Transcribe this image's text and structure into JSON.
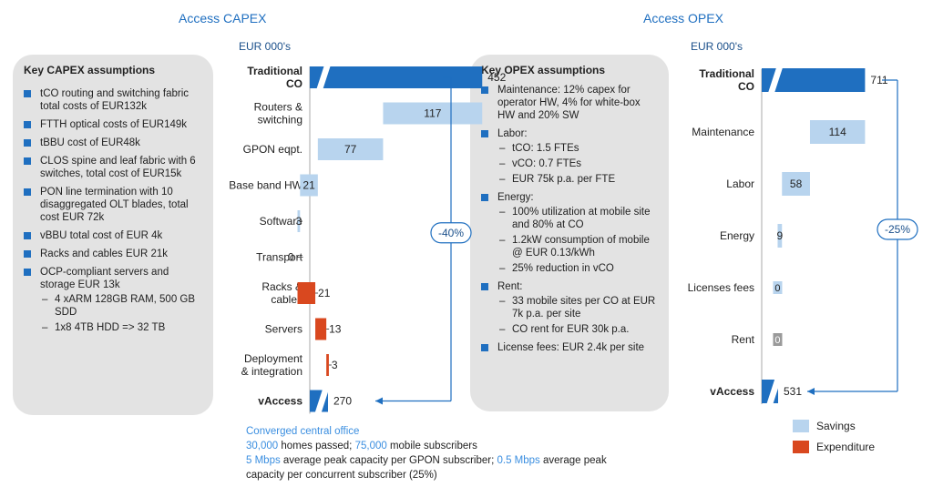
{
  "capex": {
    "title": "Access CAPEX",
    "units": "EUR 000's",
    "panel_title": "Key CAPEX assumptions",
    "assumptions": [
      {
        "text": "tCO routing and switching fabric total costs of EUR132k"
      },
      {
        "text": "FTTH optical costs of EUR149k"
      },
      {
        "text": "tBBU cost of EUR48k"
      },
      {
        "text": "CLOS spine and leaf fabric with 6 switches, total cost of EUR15k"
      },
      {
        "text": "PON line termination with 10 disaggregated OLT blades, total cost EUR 72k"
      },
      {
        "text": "vBBU total cost of EUR 4k"
      },
      {
        "text": "Racks and cables EUR 21k"
      },
      {
        "text": "OCP-compliant servers and storage EUR 13k",
        "sub": [
          "4 xARM 128GB RAM, 500 GB SDD",
          "1x8 4TB HDD => 32 TB"
        ]
      }
    ]
  },
  "opex": {
    "title": "Access OPEX",
    "units": "EUR 000's",
    "panel_title": "Key OPEX assumptions",
    "assumptions": [
      {
        "text": "Maintenance: 12% capex for operator HW, 4% for white-box HW and 20% SW"
      },
      {
        "text": "Labor:",
        "sub": [
          "tCO: 1.5 FTEs",
          "vCO: 0.7 FTEs",
          "EUR 75k p.a. per FTE"
        ]
      },
      {
        "text": "Energy:",
        "sub": [
          "100% utilization at mobile site and 80% at CO",
          "1.2kW consumption of mobile @ EUR 0.13/kWh",
          "25% reduction in vCO"
        ]
      },
      {
        "text": "Rent:",
        "sub": [
          "33 mobile sites per CO at EUR 7k p.a. per site",
          "CO rent for EUR 30k p.a."
        ]
      },
      {
        "text": "License fees: EUR 2.4k per site"
      }
    ]
  },
  "chart_data": [
    {
      "type": "waterfall",
      "title": "Access CAPEX",
      "ylabel": "EUR 000's",
      "change_label": "-40%",
      "categories": [
        "Traditional CO",
        "Routers & switching",
        "GPON eqpt.",
        "Base band HW",
        "Software",
        "Transport",
        "Racks & cables",
        "Servers",
        "Deployment & integration",
        "vAccess"
      ],
      "values": [
        452,
        117,
        77,
        21,
        3,
        0,
        21,
        13,
        3,
        270
      ],
      "kinds": [
        "total",
        "savings",
        "savings",
        "savings",
        "savings",
        "savings",
        "expenditure",
        "expenditure",
        "expenditure",
        "total"
      ],
      "value_labels": [
        "452",
        "117",
        "77",
        "21",
        "3",
        "0",
        "21",
        "13",
        "3",
        "270"
      ]
    },
    {
      "type": "waterfall",
      "title": "Access OPEX",
      "ylabel": "EUR 000's",
      "change_label": "-25%",
      "categories": [
        "Traditional CO",
        "Maintenance",
        "Labor",
        "Energy",
        "Licenses fees",
        "Rent",
        "vAccess"
      ],
      "values": [
        711,
        114,
        58,
        9,
        0,
        0,
        531
      ],
      "kinds": [
        "total",
        "savings",
        "savings",
        "savings",
        "savings",
        "neutral",
        "total"
      ],
      "value_labels": [
        "711",
        "114",
        "58",
        "9",
        "0",
        "0",
        "531"
      ]
    }
  ],
  "colors": {
    "total": "#1f6fc0",
    "savings": "#b8d4ee",
    "expenditure": "#d9481f",
    "neutral": "#9a9a9a"
  },
  "legend": [
    {
      "label": "Savings",
      "color": "#b8d4ee"
    },
    {
      "label": "Expenditure",
      "color": "#d9481f"
    }
  ],
  "footnote": {
    "line1": "Converged central office",
    "line2_num1": "30,000",
    "line2_mid": " homes passed; ",
    "line2_num2": "75,000",
    "line2_end": " mobile subscribers",
    "line3_num1": "5 Mbps",
    "line3_mid": " average peak capacity per GPON subscriber; ",
    "line3_num2": "0.5 Mbps",
    "line3_end": " average peak",
    "line4": "capacity per concurrent subscriber (25%)"
  }
}
